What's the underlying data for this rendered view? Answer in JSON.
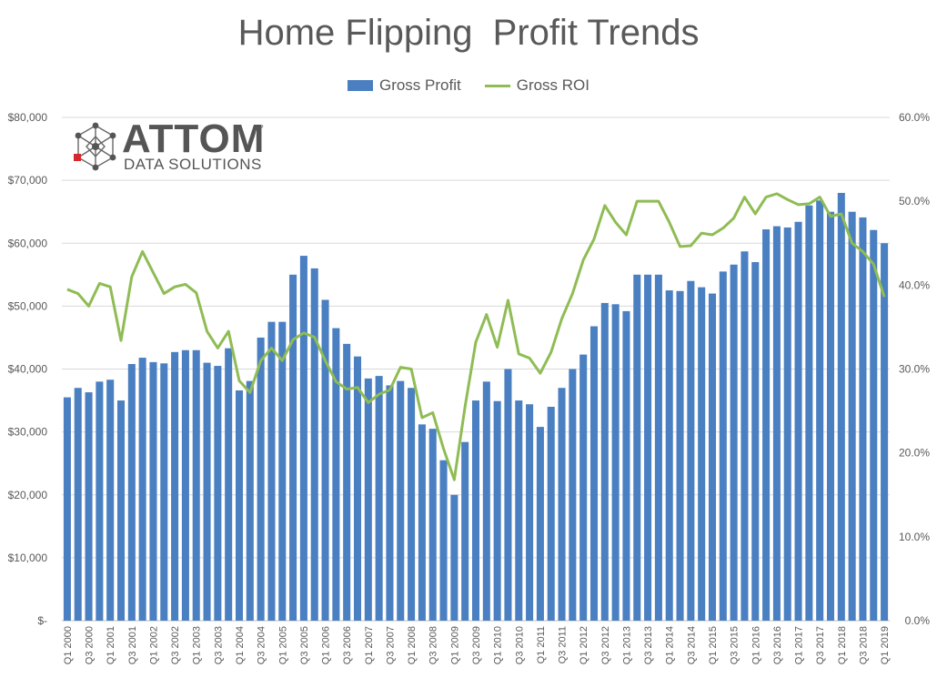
{
  "chart_data": {
    "type": "bar",
    "title": "Home Flipping  Profit Trends",
    "xlabel": "",
    "ylabel": "",
    "y2label": "",
    "ylim": [
      0,
      80000
    ],
    "y2lim": [
      0.0,
      60.0
    ],
    "y_ticks": [
      "$-",
      "$10,000",
      "$20,000",
      "$30,000",
      "$40,000",
      "$50,000",
      "$60,000",
      "$70,000",
      "$80,000"
    ],
    "y2_ticks": [
      "0.0%",
      "10.0%",
      "20.0%",
      "30.0%",
      "40.0%",
      "50.0%",
      "60.0%"
    ],
    "grid": true,
    "legend_position": "top-center",
    "tick_labels": [
      "Q1 2000",
      "Q3 2000",
      "Q1 2001",
      "Q3 2001",
      "Q1 2002",
      "Q3 2002",
      "Q1 2003",
      "Q3 2003",
      "Q1 2004",
      "Q3 2004",
      "Q1 2005",
      "Q3 2005",
      "Q1 2006",
      "Q3 2006",
      "Q1 2007",
      "Q3 2007",
      "Q1 2008",
      "Q3 2008",
      "Q1 2009",
      "Q3 2009",
      "Q1 2010",
      "Q3 2010",
      "Q1 2011",
      "Q3 2011",
      "Q1 2012",
      "Q3 2012",
      "Q1 2013",
      "Q3 2013",
      "Q1 2014",
      "Q3 2014",
      "Q1 2015",
      "Q3 2015",
      "Q1 2016",
      "Q3 2016",
      "Q1 2017",
      "Q3 2017",
      "Q1 2018",
      "Q3 2018",
      "Q1 2019"
    ],
    "series": [
      {
        "name": "Gross Profit",
        "type": "bar",
        "axis": "left",
        "color": "#4a7fc1",
        "values": [
          35500,
          37000,
          36300,
          38000,
          38300,
          35000,
          40800,
          41800,
          41100,
          40900,
          42700,
          43000,
          43000,
          41000,
          40500,
          43300,
          36600,
          38100,
          45000,
          47500,
          47500,
          55000,
          58000,
          56000,
          51000,
          46500,
          44000,
          42000,
          38500,
          38900,
          37400,
          38100,
          37000,
          31200,
          30500,
          25500,
          20000,
          28400,
          35000,
          38000,
          34900,
          40000,
          35000,
          34400,
          30800,
          34000,
          37000,
          40000,
          42300,
          46800,
          50500,
          50300,
          49200,
          55000,
          55000,
          55000,
          52500,
          52400,
          54000,
          53000,
          52000,
          55500,
          56600,
          58700,
          57000,
          62200,
          62700,
          62500,
          63400,
          66000,
          66800,
          65000,
          68000,
          65000,
          64100,
          62100,
          60000
        ]
      },
      {
        "name": "Gross ROI",
        "type": "line",
        "axis": "right",
        "color": "#8fbc54",
        "values": [
          39.5,
          39.0,
          37.5,
          40.2,
          39.8,
          33.4,
          41.0,
          44.0,
          41.5,
          39.0,
          39.8,
          40.1,
          39.1,
          34.5,
          32.5,
          34.5,
          28.6,
          27.2,
          31.0,
          32.5,
          31.0,
          33.5,
          34.3,
          33.8,
          31.0,
          28.5,
          27.6,
          27.8,
          26.0,
          27.0,
          27.5,
          30.2,
          30.0,
          24.2,
          24.8,
          20.5,
          16.8,
          25.5,
          33.2,
          36.5,
          32.6,
          38.2,
          31.8,
          31.3,
          29.5,
          32.0,
          36.0,
          39.0,
          43.0,
          45.5,
          49.5,
          47.5,
          46.0,
          50.0,
          50.0,
          50.0,
          47.5,
          44.6,
          44.7,
          46.2,
          46.0,
          46.8,
          48.0,
          50.5,
          48.5,
          50.5,
          50.9,
          50.2,
          49.6,
          49.7,
          50.5,
          48.2,
          48.5,
          45.0,
          44.0,
          42.5,
          38.6
        ]
      }
    ]
  },
  "logo": {
    "brand": "ATTOM",
    "trademark": "™",
    "subtitle": "DATA SOLUTIONS"
  }
}
